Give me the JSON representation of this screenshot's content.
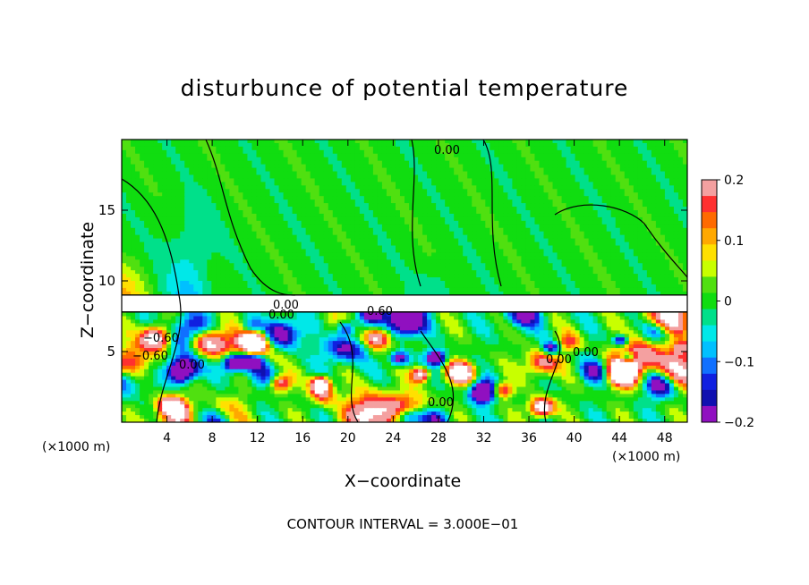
{
  "chart_data": {
    "type": "heatmap",
    "title": "disturbunce of potential temperature",
    "xlabel": "X−coordinate",
    "ylabel": "Z−coordinate",
    "x_unit_left": "(×1000 m)",
    "x_unit_right": "(×1000 m)",
    "footer": "CONTOUR INTERVAL = 3.000E−01",
    "xlim": [
      0,
      50
    ],
    "ylim": [
      0,
      20
    ],
    "x_ticks": [
      4,
      8,
      12,
      16,
      20,
      24,
      28,
      32,
      36,
      40,
      44,
      48
    ],
    "x_tick_labels": [
      "4",
      "8",
      "12",
      "16",
      "20",
      "24",
      "28",
      "32",
      "36",
      "40",
      "44",
      "48"
    ],
    "y_ticks": [
      5,
      10,
      15
    ],
    "y_tick_labels": [
      "5",
      "10",
      "15"
    ],
    "colorbar": {
      "range": [
        -0.2,
        0.2
      ],
      "tick_values": [
        0.2,
        0.1,
        0,
        -0.1,
        -0.2
      ],
      "tick_labels": [
        "0.2",
        "0.1",
        "0",
        "−0.1",
        "−0.2"
      ],
      "colors": [
        "#f4a0a0",
        "#ff3030",
        "#ff6a00",
        "#ffa800",
        "#ffe000",
        "#c8ff00",
        "#50e010",
        "#10dd10",
        "#00e08a",
        "#00e8e8",
        "#00c0ff",
        "#1070ff",
        "#1020e0",
        "#1010b0",
        "#9010c0"
      ]
    },
    "contour_labels": [
      "0.00",
      "0.00",
      "−0.60",
      "0.60",
      "0.00",
      "0.00",
      "0.00",
      "−0.60",
      "0.00",
      "0.00"
    ],
    "layers": [
      {
        "name": "upper",
        "z_range": [
          9,
          20
        ],
        "dominant_value": 0.0
      },
      {
        "name": "lower",
        "z_range": [
          0,
          8
        ],
        "value_range": [
          -0.2,
          0.2
        ]
      }
    ],
    "features": {
      "warm_patch_left_upper": {
        "x": [
          0,
          3
        ],
        "z": [
          9,
          12
        ],
        "value": 0.1
      },
      "cool_plume_upper": {
        "x": [
          4,
          8
        ],
        "z": [
          9,
          18
        ],
        "value": -0.05
      }
    }
  }
}
